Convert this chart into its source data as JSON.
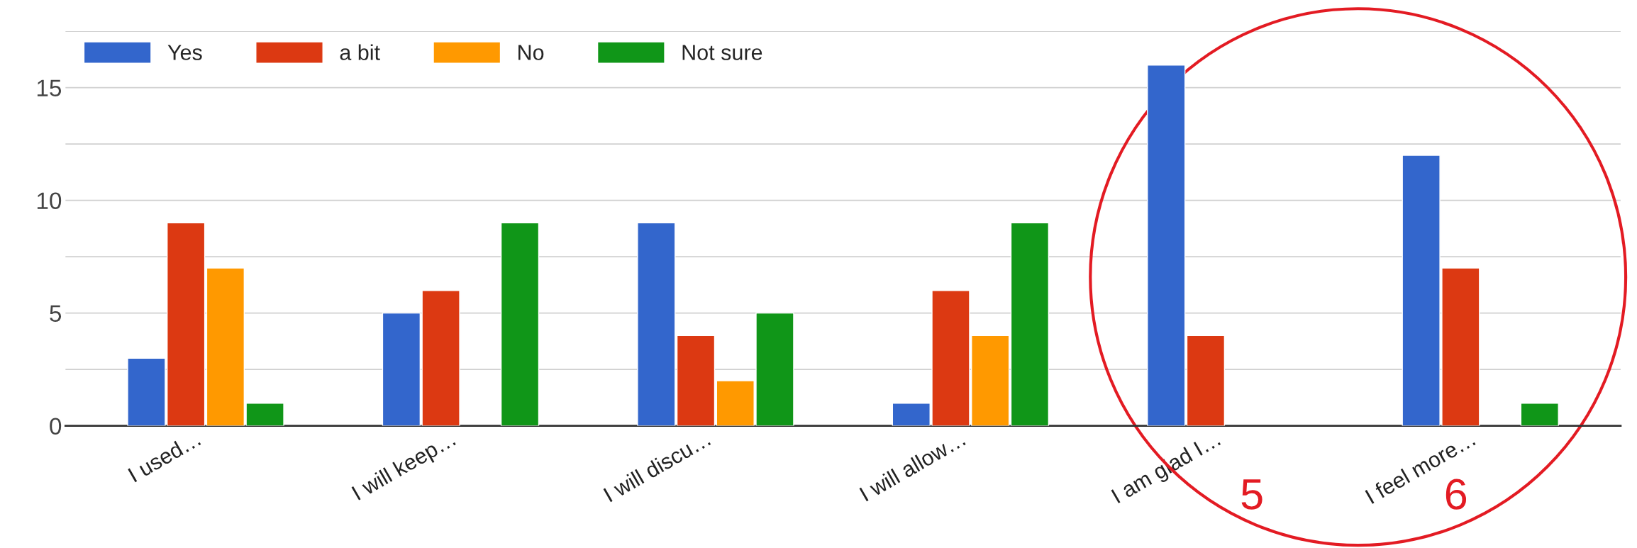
{
  "chart_data": {
    "type": "bar",
    "categories": [
      "I used…",
      "I will keep…",
      "I will discu…",
      "I will allow…",
      "I am glad I…",
      "I feel more…"
    ],
    "series": [
      {
        "name": "Yes",
        "color": "#3366cc",
        "values": [
          3,
          5,
          9,
          1,
          16,
          12
        ]
      },
      {
        "name": "a bit",
        "color": "#dc3912",
        "values": [
          9,
          6,
          4,
          6,
          4,
          7
        ]
      },
      {
        "name": "No",
        "color": "#ff9900",
        "values": [
          7,
          null,
          2,
          4,
          null,
          null
        ]
      },
      {
        "name": "Not sure",
        "color": "#109618",
        "values": [
          1,
          9,
          5,
          9,
          null,
          1
        ]
      }
    ],
    "ylim": [
      0,
      17.5
    ],
    "yticks": [
      0,
      {
        "value": 2.5,
        "label": null
      },
      5,
      {
        "value": 7.5,
        "label": null
      },
      10,
      {
        "value": 12.5,
        "label": null
      },
      15,
      {
        "value": 17.5,
        "label": null
      }
    ],
    "grid": "y",
    "legend": "top left",
    "annotations": [
      "5",
      "6"
    ]
  }
}
